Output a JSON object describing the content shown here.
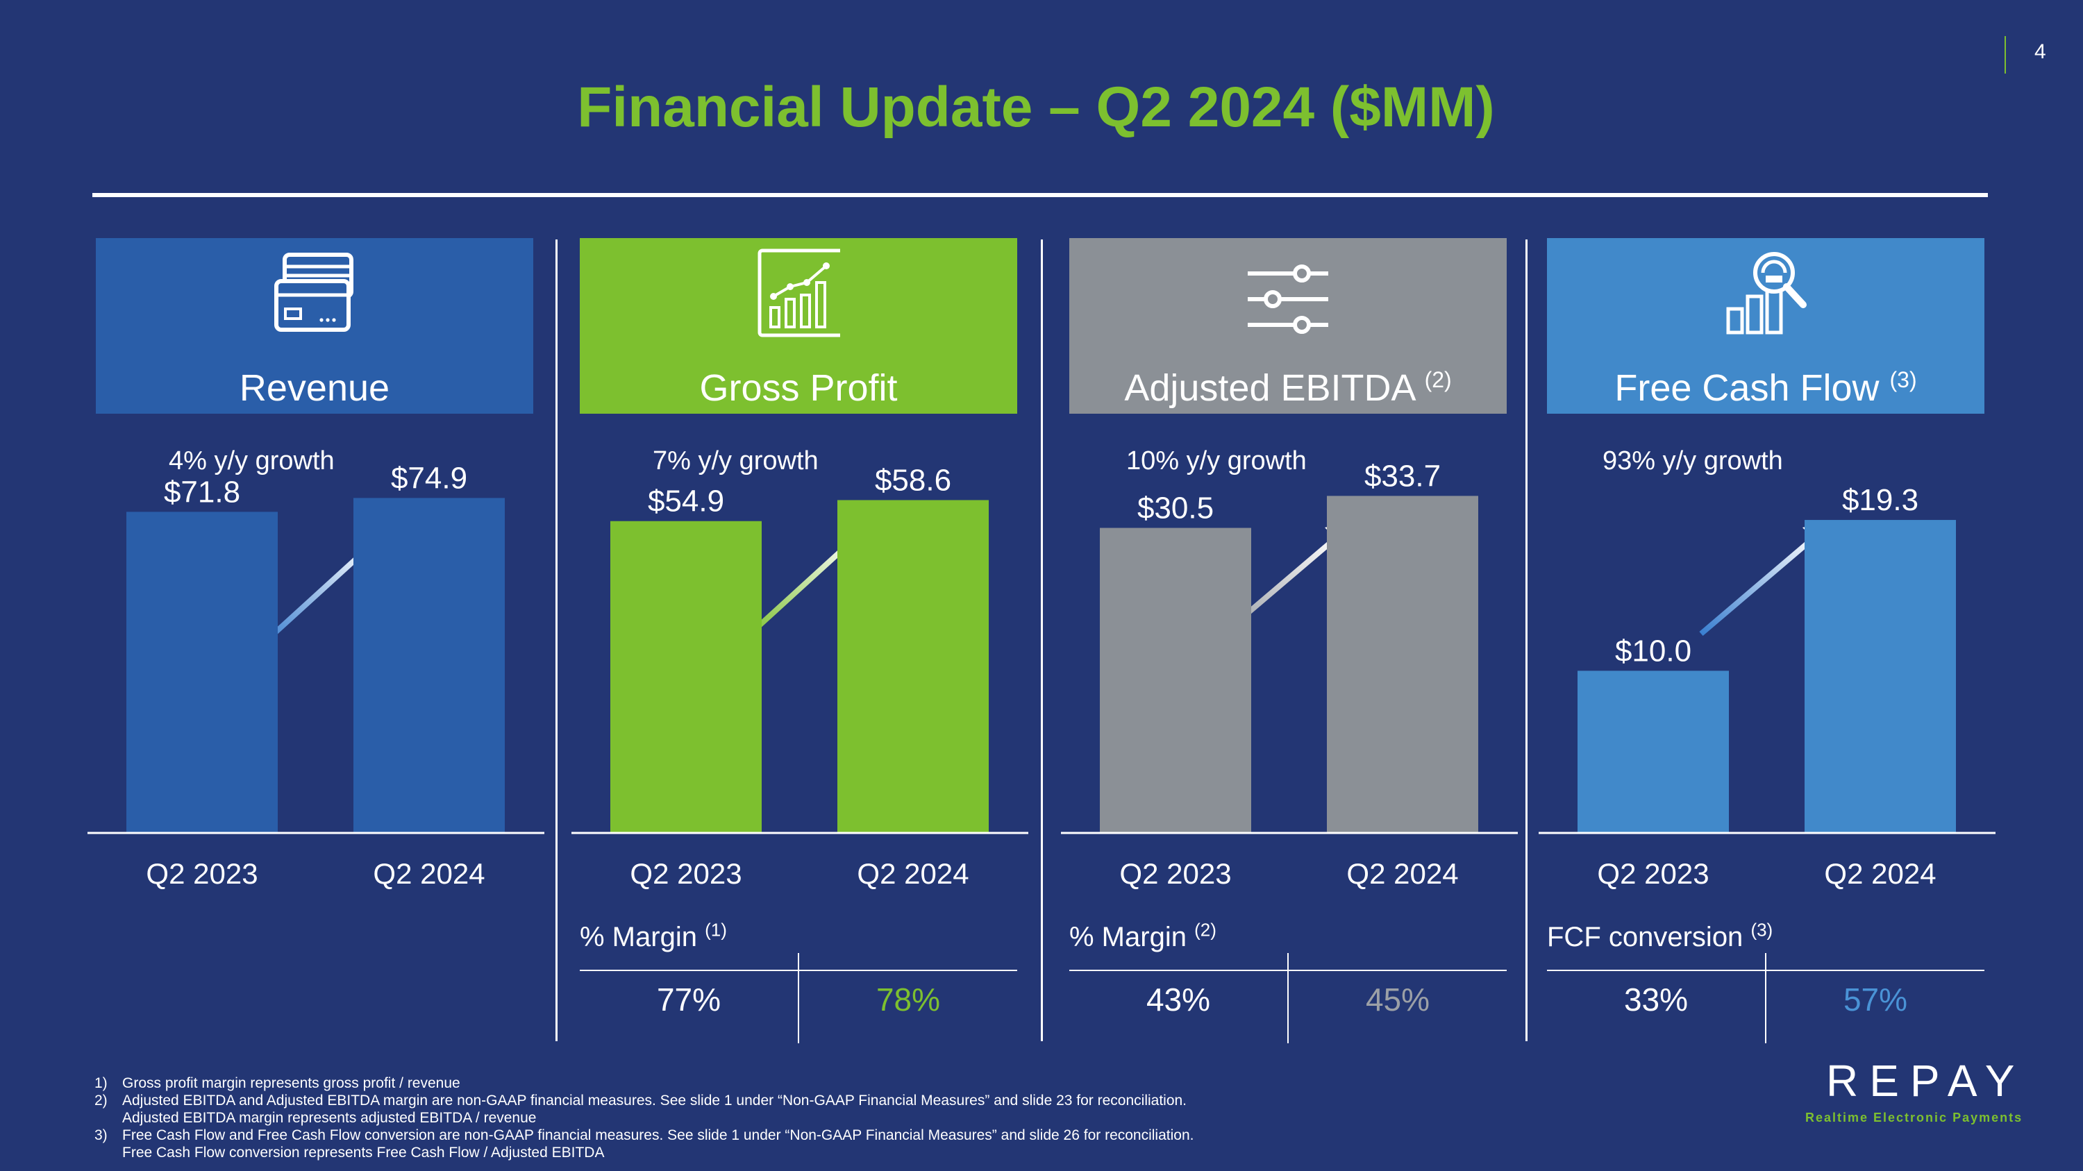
{
  "page_number": "4",
  "title": "Financial Update – Q2 2024 ($MM)",
  "colors": {
    "background": "#233674",
    "revenue": "#2a5ea9",
    "gross_profit": "#7dc02f",
    "adj_ebitda": "#8b9096",
    "fcf": "#4189ca"
  },
  "chart_data": [
    {
      "type": "bar",
      "title": "Revenue",
      "title_sup": "",
      "icon": "credit-card-icon",
      "growth": "4% y/y growth",
      "categories": [
        "Q2 2023",
        "Q2 2024"
      ],
      "values": [
        71.8,
        74.9
      ],
      "value_labels": [
        "$71.8",
        "$74.9"
      ],
      "ylim": [
        0,
        77.6
      ]
    },
    {
      "type": "bar",
      "title": "Gross Profit",
      "title_sup": "",
      "icon": "bar-chart-growth-icon",
      "growth": "7% y/y growth",
      "categories": [
        "Q2 2023",
        "Q2 2024"
      ],
      "values": [
        54.9,
        58.6
      ],
      "value_labels": [
        "$54.9",
        "$58.6"
      ],
      "ylim": [
        0,
        61.1
      ],
      "metric": {
        "label": "% Margin",
        "sup": "(1)",
        "values": [
          "77%",
          "78%"
        ]
      }
    },
    {
      "type": "bar",
      "title": "Adjusted EBITDA",
      "title_sup": "(2)",
      "icon": "sliders-icon",
      "growth": "10% y/y growth",
      "categories": [
        "Q2 2023",
        "Q2 2024"
      ],
      "values": [
        30.5,
        33.7
      ],
      "value_labels": [
        "$30.5",
        "$33.7"
      ],
      "ylim": [
        0,
        34.7
      ],
      "metric": {
        "label": "% Margin",
        "sup": "(2)",
        "values": [
          "43%",
          "45%"
        ]
      }
    },
    {
      "type": "bar",
      "title": "Free Cash Flow",
      "title_sup": "(3)",
      "icon": "magnifier-bars-icon",
      "growth": "93% y/y growth",
      "categories": [
        "Q2 2023",
        "Q2 2024"
      ],
      "values": [
        10.0,
        19.3
      ],
      "value_labels": [
        "$10.0",
        "$19.3"
      ],
      "ylim": [
        0,
        21.4
      ],
      "metric": {
        "label": "FCF conversion",
        "sup": "(3)",
        "values": [
          "33%",
          "57%"
        ]
      }
    }
  ],
  "footnotes": [
    {
      "num": "1)",
      "lines": [
        "Gross profit margin represents gross profit / revenue"
      ]
    },
    {
      "num": "2)",
      "lines": [
        "Adjusted EBITDA and Adjusted EBITDA margin are non-GAAP financial measures. See slide 1 under “Non-GAAP Financial Measures” and slide 23 for reconciliation.",
        "Adjusted EBITDA margin represents adjusted EBITDA / revenue"
      ]
    },
    {
      "num": "3)",
      "lines": [
        "Free Cash Flow and Free Cash Flow conversion are non-GAAP financial measures. See slide 1 under “Non-GAAP Financial Measures” and slide 26 for reconciliation.",
        "Free Cash Flow conversion represents Free Cash Flow / Adjusted EBITDA"
      ]
    }
  ],
  "logo": {
    "name": "REPAY",
    "tagline": "Realtime Electronic Payments"
  }
}
